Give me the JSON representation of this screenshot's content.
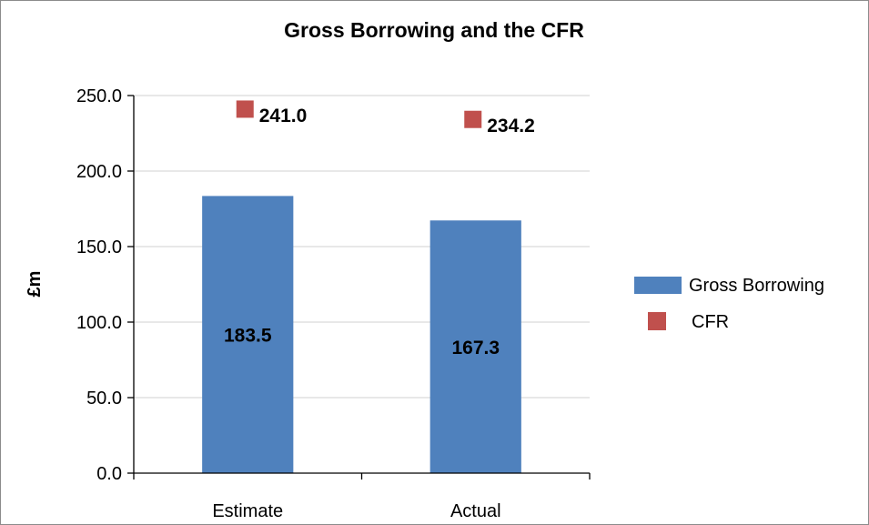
{
  "chart_data": {
    "type": "bar",
    "title": "Gross Borrowing and the CFR",
    "xlabel": "",
    "ylabel": "£m",
    "categories": [
      "Estimate",
      "Actual"
    ],
    "ylim": [
      0,
      250
    ],
    "yticks": [
      0,
      50,
      100,
      150,
      200,
      250
    ],
    "ytick_labels": [
      "0.0",
      "50.0",
      "100.0",
      "150.0",
      "200.0",
      "250.0"
    ],
    "grid": true,
    "legend_position": "right",
    "series": [
      {
        "name": "Gross Borrowing",
        "kind": "bar",
        "color": "#4f81bd",
        "values": [
          183.5,
          167.3
        ],
        "labels": [
          "183.5",
          "167.3"
        ]
      },
      {
        "name": "CFR",
        "kind": "marker",
        "marker": "square",
        "color": "#c0504d",
        "values": [
          241.0,
          234.2
        ],
        "labels": [
          "241.0",
          "234.2"
        ]
      }
    ]
  }
}
